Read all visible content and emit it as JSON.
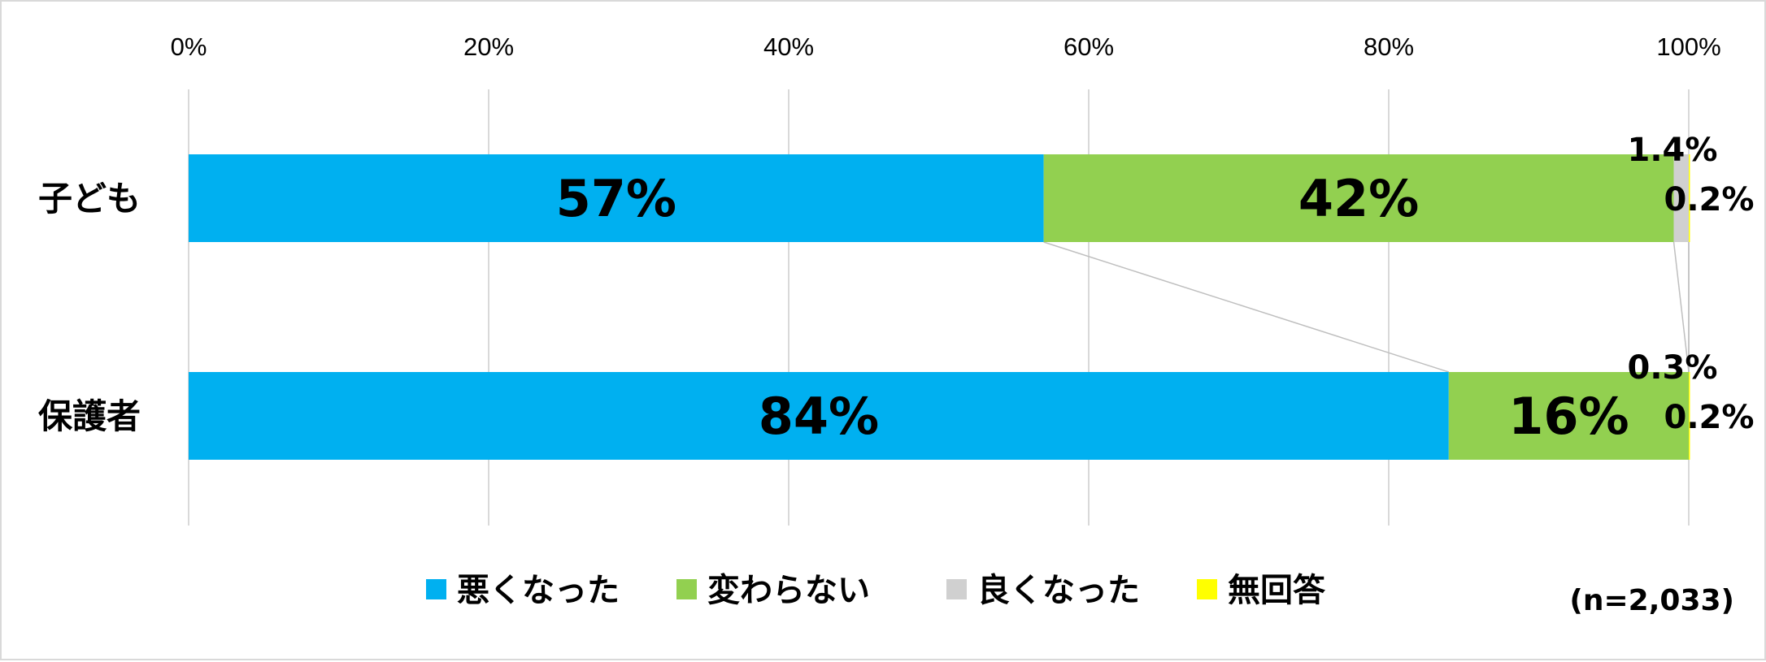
{
  "chart_data": {
    "type": "bar",
    "orientation": "horizontal",
    "stacked": "percent",
    "categories": [
      "子ども",
      "保護者"
    ],
    "series": [
      {
        "name": "悪くなった",
        "color": "#00B0F0",
        "values": [
          57,
          84
        ],
        "labels": [
          "57%",
          "84%"
        ]
      },
      {
        "name": "変わらない",
        "color": "#92D050",
        "values": [
          42,
          16
        ],
        "labels": [
          "42%",
          "16%"
        ]
      },
      {
        "name": "良くなった",
        "color": "#D0D0D0",
        "values": [
          1.4,
          0.3
        ],
        "labels": [
          "1.4%",
          "0.3%"
        ]
      },
      {
        "name": "無回答",
        "color": "#FFFF00",
        "values": [
          0.2,
          0.2
        ],
        "labels": [
          "0.2%",
          "0.2%"
        ]
      }
    ],
    "x_ticks": [
      "0%",
      "20%",
      "40%",
      "60%",
      "80%",
      "100%"
    ],
    "xlim": [
      0,
      100
    ],
    "axis_position": "top",
    "grid": true,
    "series_lines": true,
    "legend_position": "bottom",
    "note": "(n=2,033)"
  }
}
